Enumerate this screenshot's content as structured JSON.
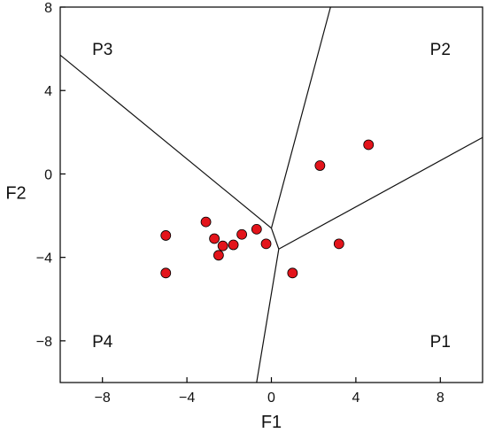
{
  "chart_data": {
    "type": "scatter",
    "title": "",
    "xlabel": "F1",
    "ylabel": "F2",
    "xlim": [
      -10,
      10
    ],
    "ylim": [
      -10,
      8
    ],
    "x_ticks": [
      {
        "value": -8,
        "label": "−8"
      },
      {
        "value": -4,
        "label": "−4"
      },
      {
        "value": 0,
        "label": "0"
      },
      {
        "value": 4,
        "label": "4"
      },
      {
        "value": 8,
        "label": "8"
      }
    ],
    "y_ticks": [
      {
        "value": 8,
        "label": "8"
      },
      {
        "value": 4,
        "label": "4"
      },
      {
        "value": 0,
        "label": "0"
      },
      {
        "value": -4,
        "label": "−4"
      },
      {
        "value": -8,
        "label": "−8"
      }
    ],
    "grid": false,
    "legend": "none",
    "point_color": "#e3141b",
    "series": [
      {
        "points": [
          {
            "x": 4.6,
            "y": 1.4
          },
          {
            "x": 2.3,
            "y": 0.4
          },
          {
            "x": -5.0,
            "y": -2.95
          },
          {
            "x": -3.1,
            "y": -2.3
          },
          {
            "x": -2.7,
            "y": -3.1
          },
          {
            "x": -2.3,
            "y": -3.45
          },
          {
            "x": -1.8,
            "y": -3.4
          },
          {
            "x": -1.4,
            "y": -2.9
          },
          {
            "x": -0.7,
            "y": -2.65
          },
          {
            "x": -0.25,
            "y": -3.35
          },
          {
            "x": -2.5,
            "y": -3.9
          },
          {
            "x": -5.0,
            "y": -4.75
          },
          {
            "x": 1.0,
            "y": -4.75
          },
          {
            "x": 3.2,
            "y": -3.35
          }
        ]
      }
    ],
    "regions": [
      {
        "label": "P3",
        "x": -8.0,
        "y": 6.0
      },
      {
        "label": "P2",
        "x": 8.0,
        "y": 6.0
      },
      {
        "label": "P4",
        "x": -8.0,
        "y": -8.0
      },
      {
        "label": "P1",
        "x": 8.0,
        "y": -8.0
      }
    ],
    "boundaries": [
      {
        "points": [
          {
            "x": -10.0,
            "y": 5.7
          },
          {
            "x": 0.0,
            "y": -2.6
          }
        ]
      },
      {
        "points": [
          {
            "x": 0.0,
            "y": -2.6
          },
          {
            "x": 2.8,
            "y": 8.0
          }
        ]
      },
      {
        "points": [
          {
            "x": 0.0,
            "y": -2.6
          },
          {
            "x": 0.35,
            "y": -3.6
          }
        ]
      },
      {
        "points": [
          {
            "x": 0.35,
            "y": -3.6
          },
          {
            "x": 10.0,
            "y": 1.75
          }
        ]
      },
      {
        "points": [
          {
            "x": 0.35,
            "y": -3.6
          },
          {
            "x": -0.7,
            "y": -10.0
          }
        ]
      }
    ]
  }
}
